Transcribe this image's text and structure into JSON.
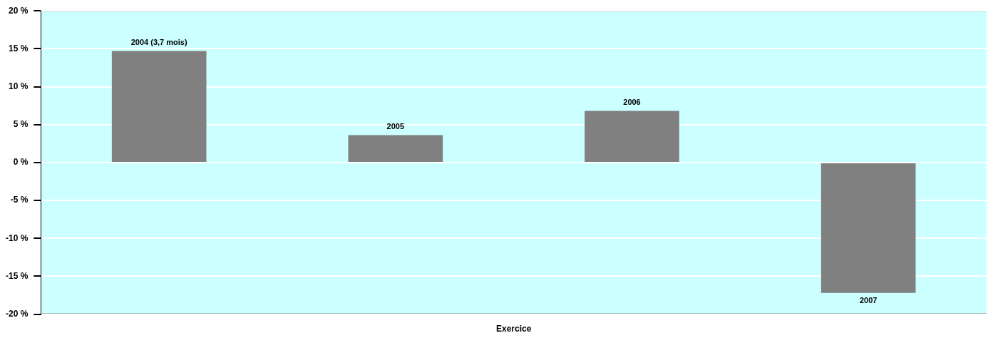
{
  "chart_data": {
    "type": "bar",
    "xlabel": "Exercice",
    "categories": [
      "2004 (3,7 mois)",
      "2005",
      "2006",
      "2007"
    ],
    "values": [
      14.7,
      3.6,
      6.8,
      -17.2
    ],
    "color": "#808080",
    "ylim": [
      -20,
      20
    ],
    "yticks": [
      {
        "value": -20,
        "label": "-20 %"
      },
      {
        "value": -15,
        "label": "-15 %"
      },
      {
        "value": -10,
        "label": "-10 %"
      },
      {
        "value": -5,
        "label": "-5 %"
      },
      {
        "value": 0,
        "label": "0 %"
      },
      {
        "value": 5,
        "label": "5 %"
      },
      {
        "value": 10,
        "label": "10 %"
      },
      {
        "value": 15,
        "label": "15 %"
      },
      {
        "value": 20,
        "label": "20 %"
      }
    ],
    "grid": "y",
    "legend": false,
    "tick_labels": "y"
  }
}
